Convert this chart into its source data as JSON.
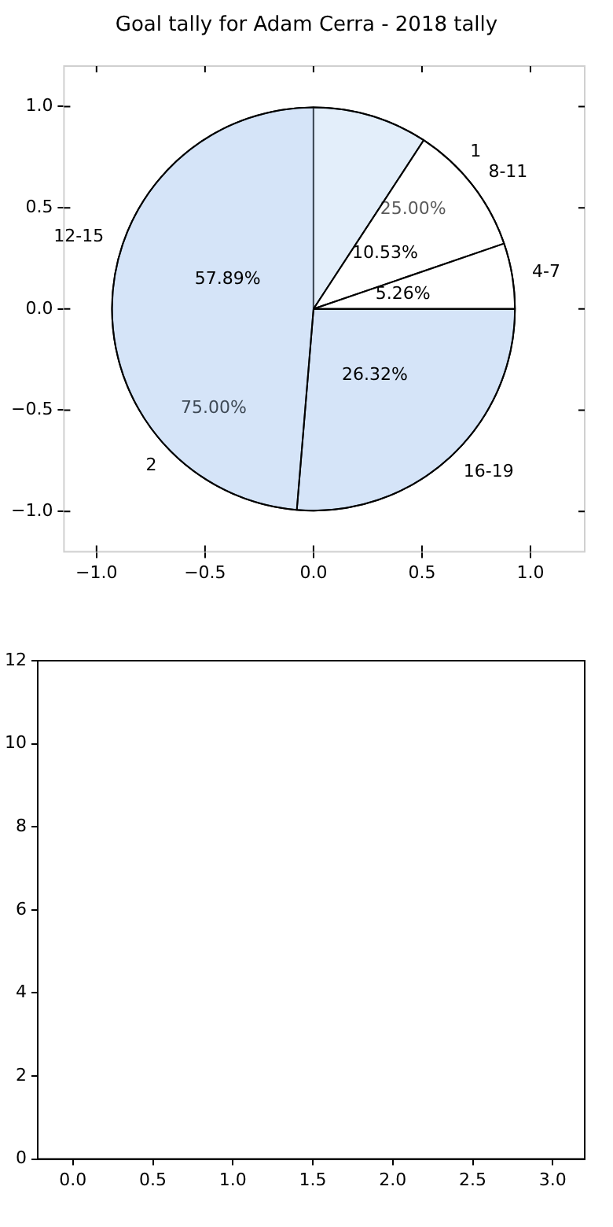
{
  "chart_data": [
    {
      "type": "scatter",
      "title": "Goal tally for Adam Cerra - 2018 tally",
      "xlim": [
        -1.15,
        1.25
      ],
      "ylim": [
        -1.2,
        1.2
      ],
      "xticks": [
        {
          "value": -1,
          "label": "−1.0"
        },
        {
          "value": -0.5,
          "label": "−0.5"
        },
        {
          "value": 0,
          "label": "0.0"
        },
        {
          "value": 0.5,
          "label": "0.5"
        },
        {
          "value": 1,
          "label": "1.0"
        }
      ],
      "yticks": [
        {
          "value": -1,
          "label": "−1.0"
        },
        {
          "value": -0.5,
          "label": "−0.5"
        },
        {
          "value": 0,
          "label": "0.0"
        },
        {
          "value": 0.5,
          "label": "0.5"
        },
        {
          "value": 1,
          "label": "1.0"
        }
      ]
    },
    {
      "type": "pie",
      "categories": [
        "2",
        "1"
      ],
      "values": [
        75,
        25
      ],
      "value_labels": [
        "75.00%",
        "25.00%"
      ],
      "colors": [
        "#eaf0fc",
        "#ffffff"
      ]
    },
    {
      "type": "pie",
      "categories": [
        "16-19",
        "12-15",
        "8-11",
        "4-7"
      ],
      "values": [
        26.32,
        57.89,
        10.53,
        5.26
      ],
      "value_labels": [
        "26.32%",
        "57.89%",
        "10.53%",
        "5.26%"
      ],
      "colors": [
        "#b0cdf0",
        "#b0cdf0",
        "#ffffff",
        "#ffffff"
      ]
    },
    {
      "type": "scatter",
      "xlim": [
        -0.22,
        3.2
      ],
      "ylim": [
        0,
        12
      ],
      "xticks": [
        {
          "value": 0,
          "label": "0.0"
        },
        {
          "value": 0.5,
          "label": "0.5"
        },
        {
          "value": 1,
          "label": "1.0"
        },
        {
          "value": 1.5,
          "label": "1.5"
        },
        {
          "value": 2,
          "label": "2.0"
        },
        {
          "value": 2.5,
          "label": "2.5"
        },
        {
          "value": 3,
          "label": "3.0"
        }
      ],
      "yticks": [
        0,
        2,
        4,
        6,
        8,
        10,
        12
      ]
    }
  ]
}
